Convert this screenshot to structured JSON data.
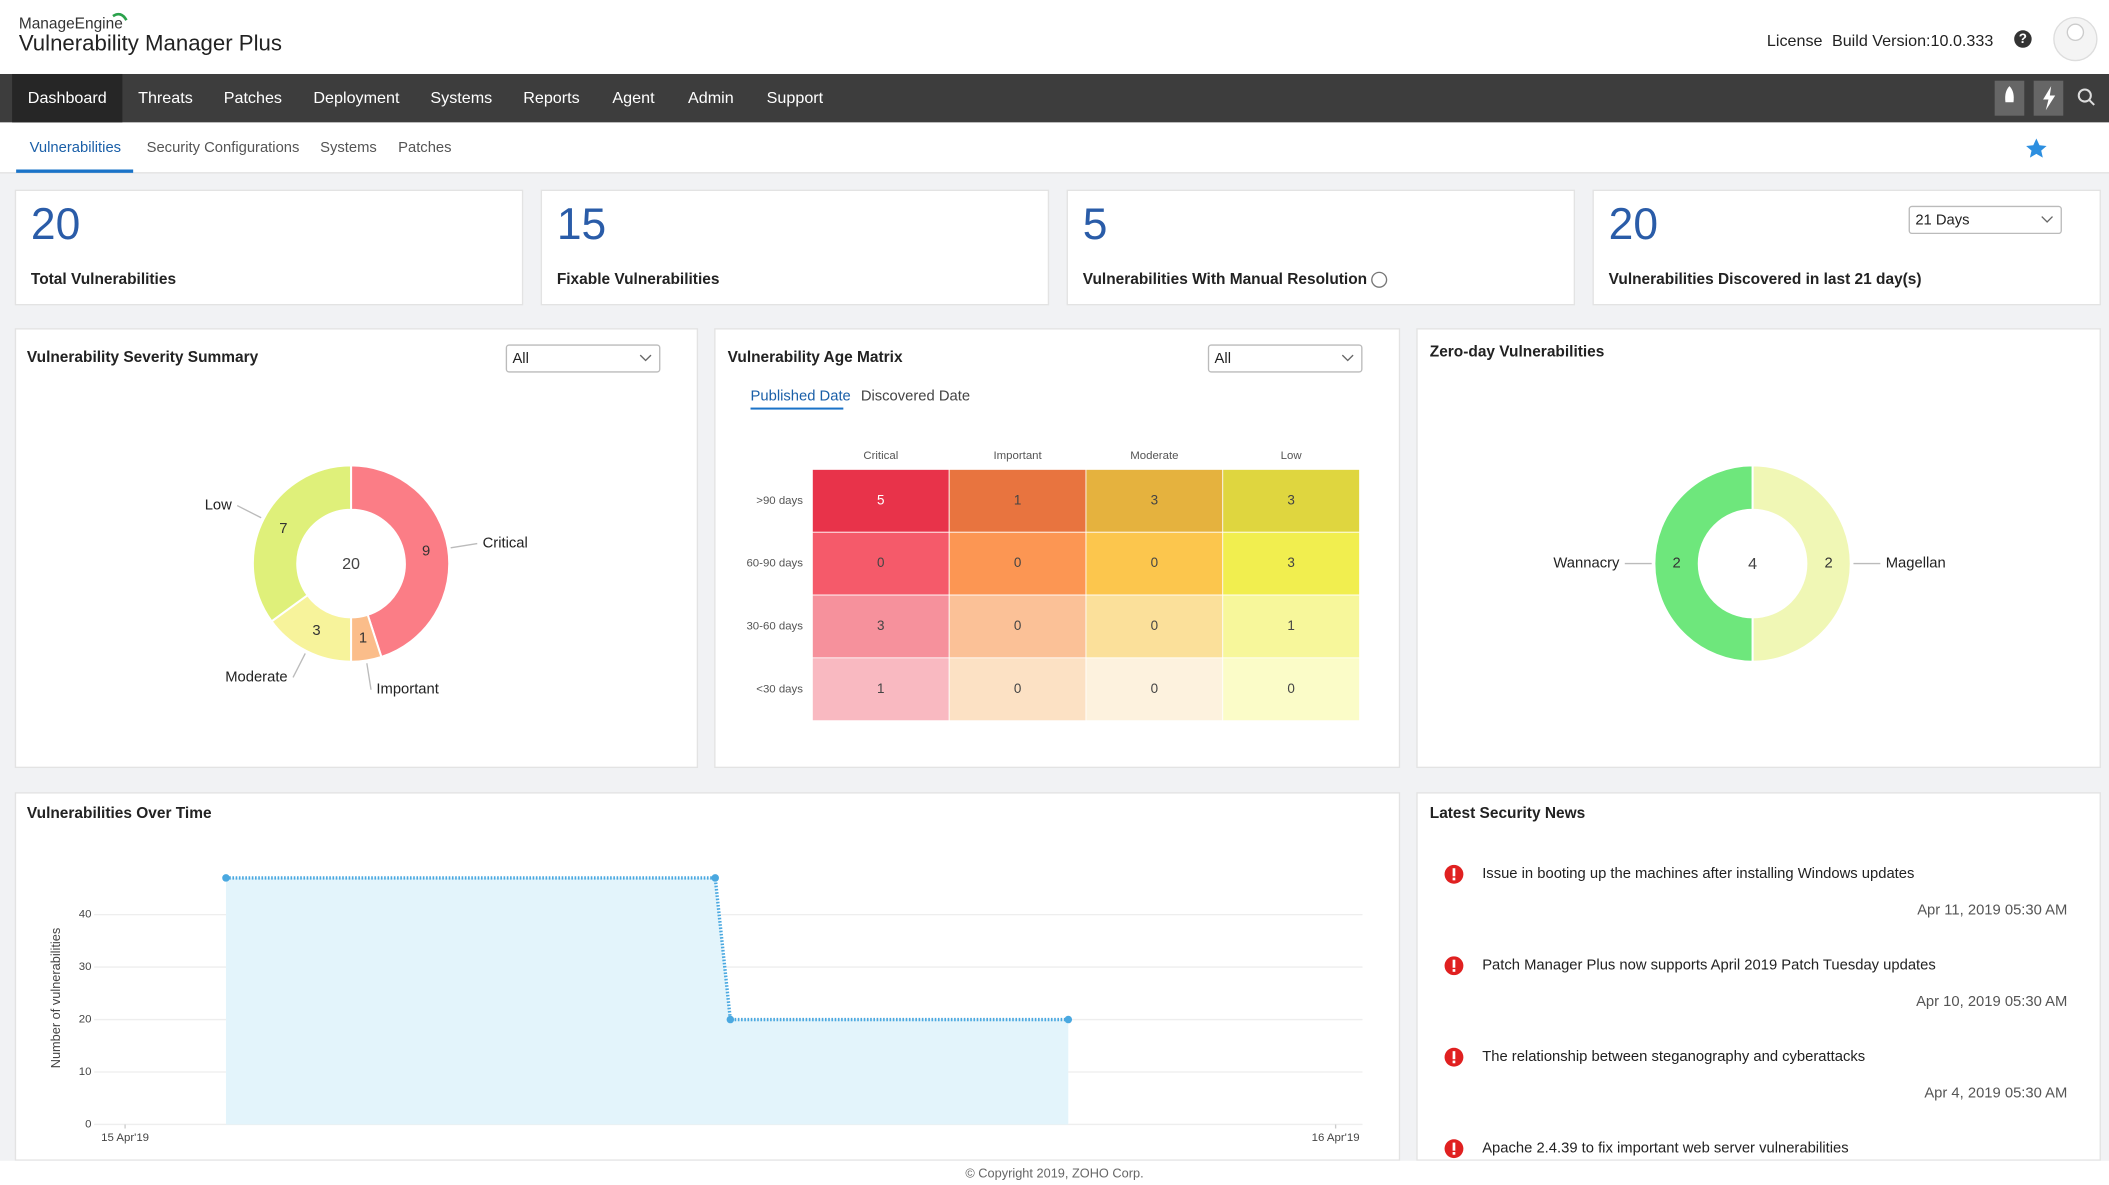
{
  "header": {
    "brand": "ManageEngine",
    "product": "Vulnerability Manager Plus",
    "license": "License",
    "build": "Build Version:10.0.333"
  },
  "nav": [
    "Dashboard",
    "Threats",
    "Patches",
    "Deployment",
    "Systems",
    "Reports",
    "Agent",
    "Admin",
    "Support"
  ],
  "subnav": [
    "Vulnerabilities",
    "Security Configurations",
    "Systems",
    "Patches"
  ],
  "cards": [
    {
      "value": 20,
      "label": "Total Vulnerabilities"
    },
    {
      "value": 15,
      "label": "Fixable Vulnerabilities"
    },
    {
      "value": 5,
      "label": "Vulnerabilities With Manual Resolution"
    },
    {
      "value": 20,
      "label": "Vulnerabilities Discovered in last 21 day(s)",
      "dropdown": "21 Days"
    }
  ],
  "severity": {
    "type": "donut",
    "title": "Vulnerability Severity Summary",
    "filter": "All",
    "total": 20,
    "slices": [
      {
        "name": "Critical",
        "value": 9,
        "color": "#fb7d86"
      },
      {
        "name": "Important",
        "value": 1,
        "color": "#fbbd8a"
      },
      {
        "name": "Moderate",
        "value": 3,
        "color": "#f7f39b"
      },
      {
        "name": "Low",
        "value": 7,
        "color": "#dff07a"
      }
    ]
  },
  "age_matrix": {
    "type": "heatmap",
    "title": "Vulnerability Age Matrix",
    "filter": "All",
    "tabs": [
      "Published Date",
      "Discovered Date"
    ],
    "columns": [
      "Critical",
      "Important",
      "Moderate",
      "Low"
    ],
    "rows": [
      {
        "label": ">90 days",
        "values": [
          5,
          1,
          3,
          3
        ],
        "colors": [
          "#e8334a",
          "#e8743f",
          "#e5b23e",
          "#dfd63f"
        ]
      },
      {
        "label": "60-90 days",
        "values": [
          0,
          0,
          0,
          3
        ],
        "colors": [
          "#f55a6a",
          "#fc9653",
          "#fcc64d",
          "#f1ee4f"
        ]
      },
      {
        "label": "30-60 days",
        "values": [
          3,
          0,
          0,
          1
        ],
        "colors": [
          "#f6919c",
          "#fbc197",
          "#fbe09a",
          "#f7f79b"
        ]
      },
      {
        "label": "<30 days",
        "values": [
          1,
          0,
          0,
          0
        ],
        "colors": [
          "#f9b9c1",
          "#fce1c4",
          "#fdf2de",
          "#fbfcc8"
        ]
      }
    ]
  },
  "zero_day": {
    "type": "donut",
    "title": "Zero-day Vulnerabilities",
    "total": 4,
    "slices": [
      {
        "name": "Magellan",
        "value": 2,
        "color": "#f0f7b5"
      },
      {
        "name": "Wannacry",
        "value": 2,
        "color": "#6ee77c"
      }
    ]
  },
  "over_time": {
    "type": "line",
    "title": "Vulnerabilities Over Time",
    "y_label": "Number of vulnerabilities",
    "ylim": [
      0,
      50
    ],
    "yticks": [
      0,
      10,
      20,
      30,
      40
    ],
    "xlim": [
      0,
      24
    ],
    "xticks": [
      {
        "value": 0,
        "label": "15 Apr'19"
      },
      {
        "value": 24,
        "label": "16 Apr'19"
      }
    ],
    "x": [
      2,
      11.7,
      12,
      18.7
    ],
    "values": [
      47,
      47,
      20,
      20
    ],
    "color": "#4aa8e0",
    "fill": "#e3f4fb",
    "grid": true
  },
  "news": {
    "title": "Latest Security News",
    "items": [
      {
        "title": "Issue in booting up the machines after installing Windows updates",
        "date": "Apr 11, 2019 05:30 AM"
      },
      {
        "title": "Patch Manager Plus now supports April 2019 Patch Tuesday updates",
        "date": "Apr 10, 2019 05:30 AM"
      },
      {
        "title": "The relationship between steganography and cyberattacks",
        "date": "Apr 4, 2019 05:30 AM"
      },
      {
        "title": "Apache 2.4.39 to fix important web server vulnerabilities"
      }
    ]
  },
  "footer": "© Copyright 2019, ZOHO Corp."
}
